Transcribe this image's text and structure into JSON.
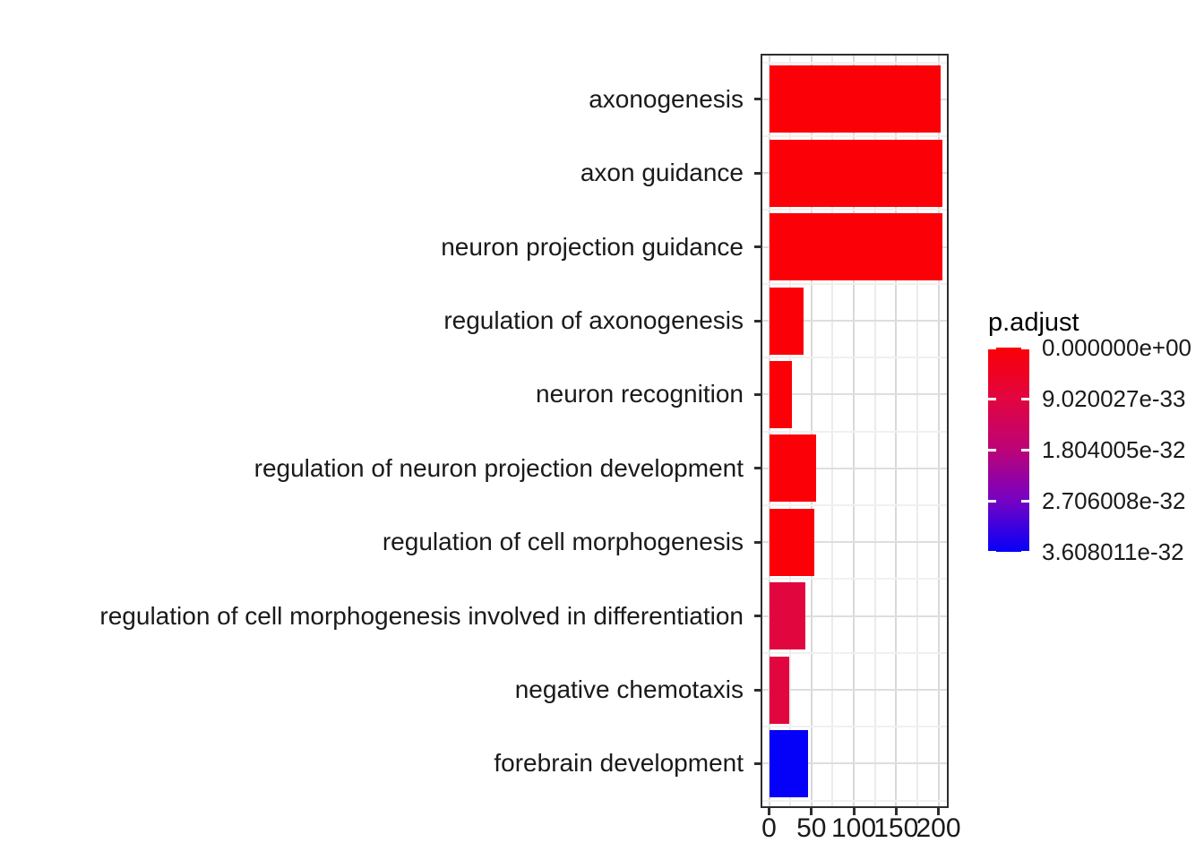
{
  "chart_data": {
    "type": "bar",
    "orientation": "horizontal",
    "title": "",
    "xlabel": "",
    "ylabel": "",
    "categories": [
      "axonogenesis",
      "axon guidance",
      "neuron projection guidance",
      "regulation of axonogenesis",
      "neuron recognition",
      "regulation of neuron projection development",
      "regulation of cell morphogenesis",
      "regulation of cell morphogenesis involved in differentiation",
      "negative chemotaxis",
      "forebrain development"
    ],
    "values": [
      203,
      205,
      205,
      41,
      27,
      56,
      53,
      43,
      24,
      46
    ],
    "bar_colors": [
      "#FB0007",
      "#FB0007",
      "#FB0007",
      "#FB0007",
      "#FB0007",
      "#FB0007",
      "#FB0007",
      "#E2063E",
      "#E2063E",
      "#0500F8"
    ],
    "x_ticks": [
      0,
      50,
      100,
      150,
      200
    ],
    "x_minor_ticks": [
      25,
      75,
      125,
      175
    ],
    "xlim": [
      0,
      212
    ],
    "grid": true,
    "legend": {
      "title": "p.adjust",
      "position": "right",
      "type": "colorbar",
      "ticks": [
        "0.000000e+00",
        "9.020027e-33",
        "1.804005e-32",
        "2.706008e-32",
        "3.608011e-32"
      ],
      "gradient_stops": [
        "#FB0007",
        "#E2053F",
        "#BC0377",
        "#7502C4",
        "#0500F8"
      ]
    },
    "colors": {
      "grid_major_v": "#D9D9D9",
      "grid_minor_v": "#EBEBEB",
      "grid_major_h": "#DEDEDE",
      "grid_minor_h": "#F0F0F0",
      "panel_border": "#2E2E2E",
      "axis_text": "#1A1A1A"
    }
  }
}
